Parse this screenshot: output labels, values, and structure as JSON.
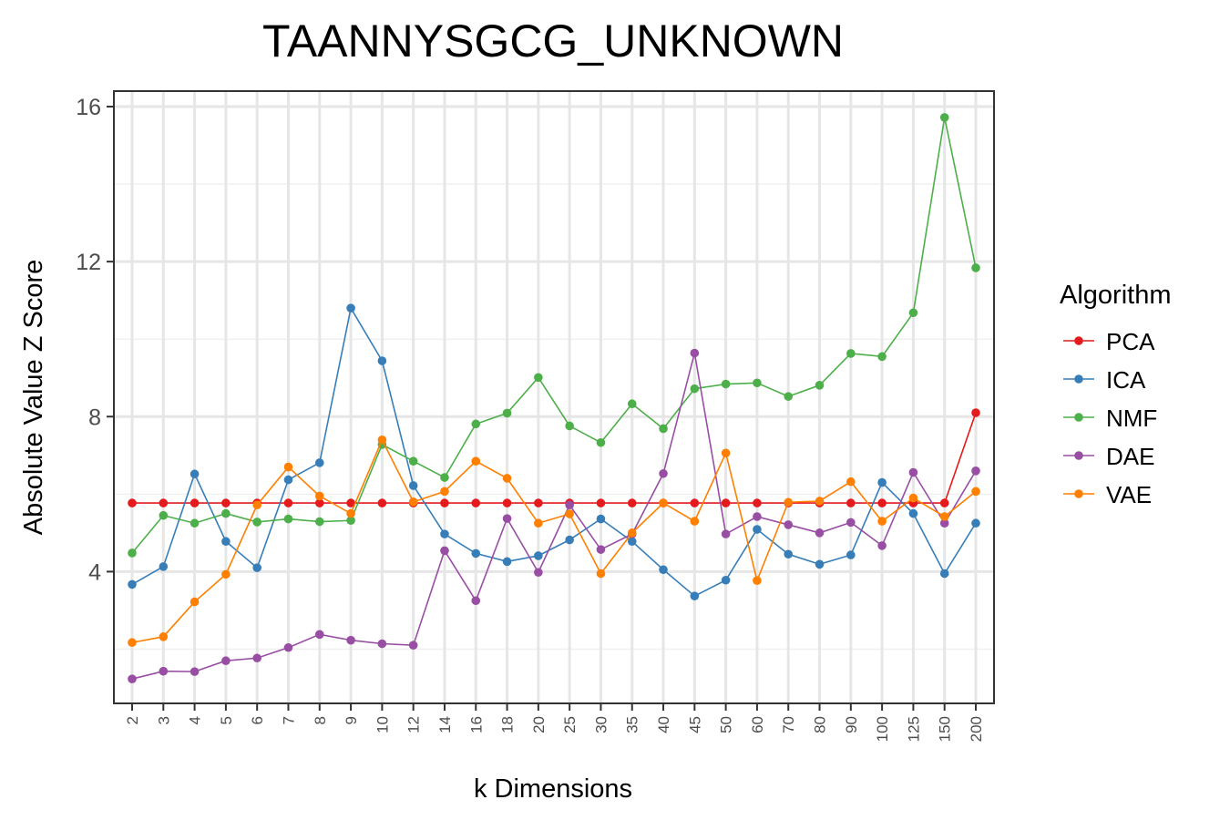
{
  "chart_data": {
    "type": "line",
    "title": "TAANNYSGCG_UNKNOWN",
    "xlabel": "k Dimensions",
    "ylabel": "Absolute Value Z Score",
    "categories": [
      "2",
      "3",
      "4",
      "5",
      "6",
      "7",
      "8",
      "9",
      "10",
      "12",
      "14",
      "16",
      "18",
      "20",
      "25",
      "30",
      "35",
      "40",
      "45",
      "50",
      "60",
      "70",
      "80",
      "90",
      "100",
      "125",
      "150",
      "200"
    ],
    "ylim": [
      0.6,
      16.4
    ],
    "yticks": [
      4,
      8,
      12,
      16
    ],
    "ytick_labels": [
      "4",
      "8",
      "12",
      "16"
    ],
    "grid": true,
    "legend": {
      "title": "Algorithm",
      "position": "right"
    },
    "series": [
      {
        "name": "PCA",
        "color": "#e41a1c",
        "values": [
          5.77,
          5.77,
          5.77,
          5.77,
          5.77,
          5.77,
          5.77,
          5.77,
          5.77,
          5.77,
          5.77,
          5.77,
          5.77,
          5.77,
          5.77,
          5.77,
          5.77,
          5.77,
          5.77,
          5.77,
          5.77,
          5.77,
          5.77,
          5.77,
          5.77,
          5.77,
          5.77,
          8.1
        ]
      },
      {
        "name": "ICA",
        "color": "#377eb8",
        "values": [
          3.67,
          4.13,
          6.52,
          4.78,
          4.1,
          6.37,
          6.81,
          10.8,
          9.44,
          6.22,
          4.97,
          4.47,
          4.26,
          4.41,
          4.82,
          5.36,
          4.78,
          4.05,
          3.37,
          3.78,
          5.09,
          4.45,
          4.19,
          4.43,
          6.3,
          5.5,
          3.95,
          5.25
        ]
      },
      {
        "name": "NMF",
        "color": "#4daf4a",
        "values": [
          4.48,
          5.45,
          5.25,
          5.5,
          5.28,
          5.36,
          5.29,
          5.32,
          7.28,
          6.85,
          6.43,
          7.81,
          8.09,
          9.01,
          7.76,
          7.33,
          8.33,
          7.69,
          8.72,
          8.84,
          8.87,
          8.52,
          8.81,
          9.63,
          9.55,
          10.68,
          15.72,
          11.84
        ]
      },
      {
        "name": "DAE",
        "color": "#984ea3",
        "values": [
          1.23,
          1.43,
          1.42,
          1.7,
          1.77,
          2.04,
          2.38,
          2.23,
          2.14,
          2.1,
          4.54,
          3.25,
          5.37,
          3.98,
          5.72,
          4.57,
          4.97,
          6.53,
          9.64,
          4.97,
          5.42,
          5.21,
          5.0,
          5.27,
          4.67,
          6.56,
          5.25,
          6.6
        ]
      },
      {
        "name": "VAE",
        "color": "#ff7f00",
        "values": [
          2.17,
          2.32,
          3.22,
          3.93,
          5.72,
          6.7,
          5.95,
          5.5,
          7.4,
          5.8,
          6.07,
          6.85,
          6.41,
          5.25,
          5.49,
          3.95,
          5.0,
          5.77,
          5.3,
          7.06,
          3.77,
          5.79,
          5.82,
          6.32,
          5.3,
          5.9,
          5.42,
          6.07
        ]
      }
    ]
  }
}
